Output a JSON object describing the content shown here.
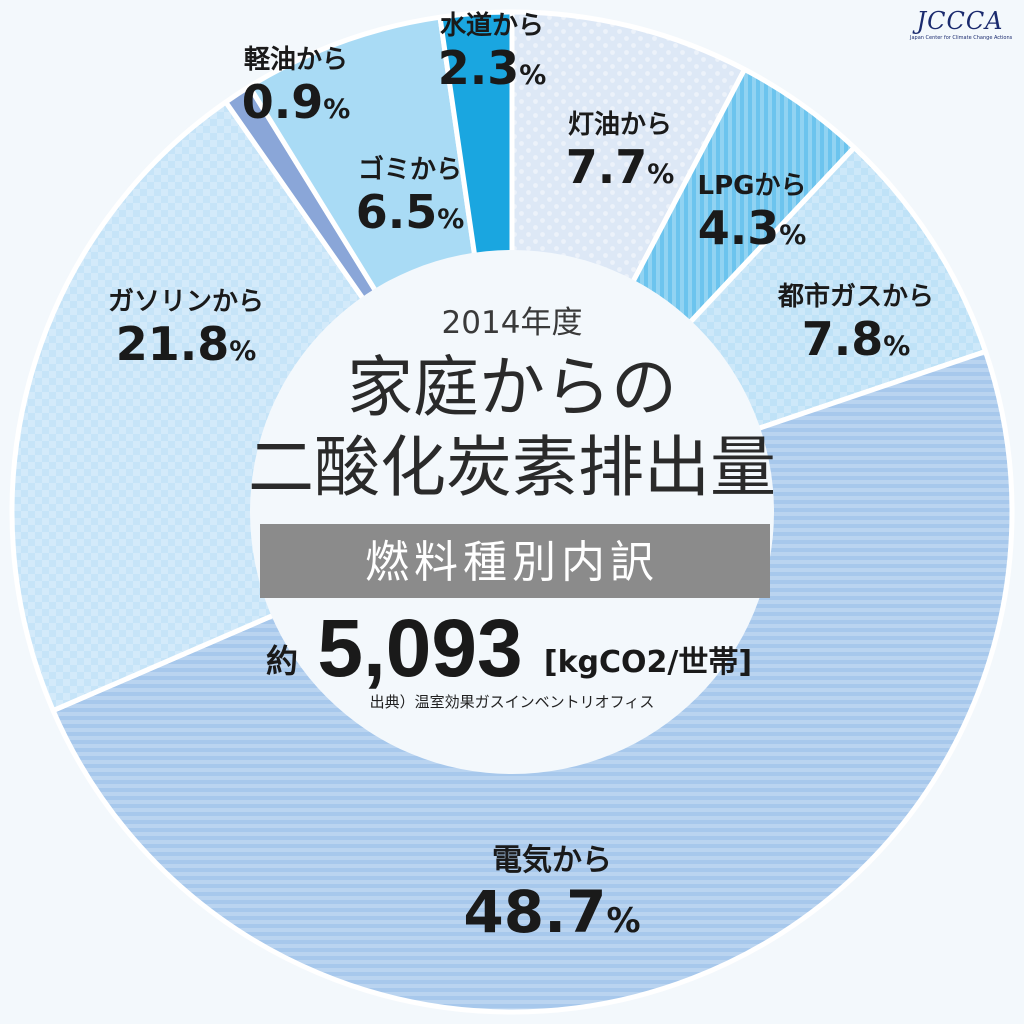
{
  "logo": {
    "text": "JCCCA",
    "subtitle": "Japan Center for Climate Change Actions"
  },
  "center": {
    "year": "2014年度",
    "title_line1": "家庭からの",
    "title_line2": "二酸化炭素排出量",
    "subtitle": "燃料種別内訳",
    "total_prefix": "約",
    "total_value": "5,093",
    "total_unit": "[kgCO2/世帯]",
    "source": "出典）温室効果ガスインベントリオフィス"
  },
  "chart_data": {
    "type": "pie",
    "title": "家庭からの二酸化炭素排出量",
    "unit": "%",
    "slices": [
      {
        "name": "灯油から",
        "value": 7.7,
        "display": "7.7",
        "color": "#dde8f6"
      },
      {
        "name": "LPGから",
        "value": 4.3,
        "display": "4.3",
        "color": "#6cc4ee"
      },
      {
        "name": "都市ガスから",
        "value": 7.8,
        "display": "7.8",
        "color": "#bfe2f7"
      },
      {
        "name": "電気から",
        "value": 48.7,
        "display": "48.7",
        "color": "#a7c8ec"
      },
      {
        "name": "ガソリンから",
        "value": 21.8,
        "display": "21.8",
        "color": "#c6e4f8"
      },
      {
        "name": "軽油から",
        "value": 0.9,
        "display": "0.9",
        "color": "#8aa6d8"
      },
      {
        "name": "ゴミから",
        "value": 6.5,
        "display": "6.5",
        "color": "#a9dbf5"
      },
      {
        "name": "水道から",
        "value": 2.3,
        "display": "2.3",
        "color": "#1aa6e0"
      }
    ]
  }
}
